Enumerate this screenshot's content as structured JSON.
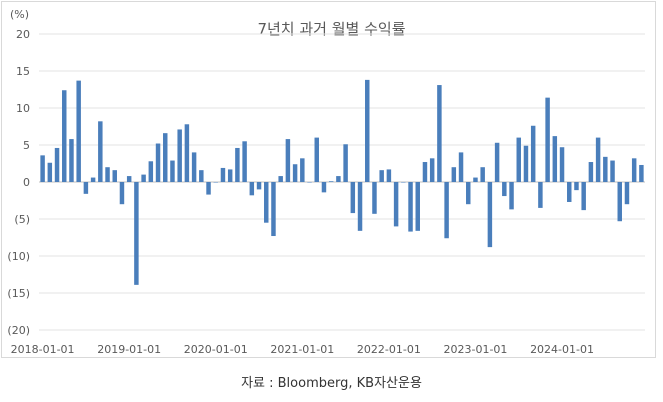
{
  "chart_data": {
    "type": "bar",
    "title": "7년치 과거 월별 수익률",
    "unit_label": "(%)",
    "ylim": [
      -20,
      20
    ],
    "y_ticks": [
      20,
      15,
      10,
      5,
      0,
      -5,
      -10,
      -15,
      -20
    ],
    "y_tick_labels": [
      "20",
      "15",
      "10",
      "5",
      "0",
      "(5)",
      "(10)",
      "(15)",
      "(20)"
    ],
    "x_tick_labels": [
      "2018-01-01",
      "2019-01-01",
      "2020-01-01",
      "2021-01-01",
      "2022-01-01",
      "2023-01-01",
      "2024-01-01"
    ],
    "grid": true,
    "bar_color": "#4a7ebb",
    "series": [
      {
        "values": [
          3.6,
          2.6,
          4.6,
          12.4,
          5.8,
          13.7,
          -1.6,
          0.6,
          8.2,
          2.0,
          1.6,
          -3.0,
          0.8,
          -13.9,
          1.0,
          2.8,
          5.2,
          6.6,
          2.9,
          7.1,
          7.8,
          4.0,
          1.6,
          -1.7,
          0.0,
          1.9,
          1.7,
          4.6,
          5.5,
          -1.8,
          -1.0,
          -5.5,
          -7.3,
          0.8,
          5.8,
          2.4,
          3.2,
          0.0,
          6.0,
          -1.4,
          0.1,
          0.8,
          5.1,
          -4.2,
          -6.6,
          13.8,
          -4.3,
          1.6,
          1.7,
          -6.0,
          0.0,
          -6.7,
          -6.6,
          2.7,
          3.2,
          13.1,
          -7.6,
          2.0,
          4.0,
          -3.0,
          0.6,
          2.0,
          -8.8,
          5.3,
          -1.9,
          -3.7,
          6.0,
          4.9,
          7.6,
          -3.5,
          11.4,
          6.2,
          4.7,
          -2.7,
          -1.1,
          -3.8,
          2.7,
          6.0,
          3.4,
          2.9,
          -5.3,
          -3.0,
          3.2,
          2.3
        ]
      }
    ]
  },
  "source": "자료 : Bloomberg, KB자산운용"
}
